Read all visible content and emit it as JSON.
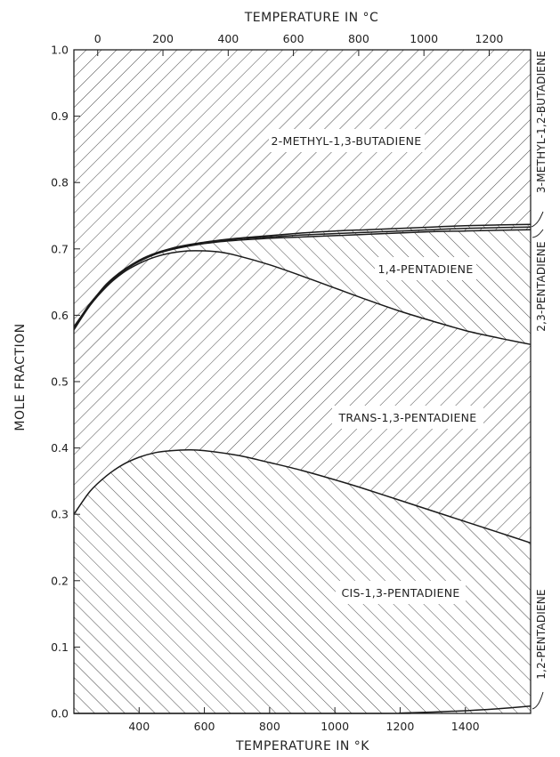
{
  "chart_data": {
    "type": "area",
    "x_axis": {
      "title": "TEMPERATURE IN °K",
      "range": [
        200,
        1600
      ],
      "ticks": [
        400,
        600,
        800,
        1000,
        1200,
        1400
      ],
      "tick_labels": [
        "400",
        "600",
        "800",
        "1000",
        "1200",
        "1400"
      ]
    },
    "top_axis": {
      "title": "TEMPERATURE IN °C",
      "ticks": [
        0,
        200,
        400,
        600,
        800,
        1000,
        1200
      ],
      "tick_labels": [
        "0",
        "200",
        "400",
        "600",
        "800",
        "1000",
        "1200"
      ]
    },
    "y_axis": {
      "title": "MOLE FRACTION",
      "range": [
        0.0,
        1.0
      ],
      "ticks": [
        0.0,
        0.1,
        0.2,
        0.3,
        0.4,
        0.5,
        0.6,
        0.7,
        0.8,
        0.9,
        1.0
      ],
      "tick_labels": [
        "0.0",
        "0.1",
        "0.2",
        "0.3",
        "0.4",
        "0.5",
        "0.6",
        "0.7",
        "0.8",
        "0.9",
        "1.0"
      ]
    },
    "grid": false,
    "boundaries": [
      {
        "id": "b12",
        "x": [
          200,
          1150,
          1200,
          1300,
          1400,
          1500,
          1600
        ],
        "y": [
          0.0,
          0.0,
          0.0005,
          0.002,
          0.004,
          0.007,
          0.011
        ]
      },
      {
        "id": "bcis",
        "x": [
          200,
          250,
          300,
          350,
          400,
          450,
          500,
          550,
          600,
          700,
          800,
          900,
          1000,
          1100,
          1200,
          1300,
          1400,
          1500,
          1600
        ],
        "y": [
          0.3,
          0.335,
          0.358,
          0.375,
          0.386,
          0.393,
          0.396,
          0.397,
          0.396,
          0.389,
          0.378,
          0.366,
          0.352,
          0.337,
          0.321,
          0.305,
          0.289,
          0.273,
          0.257
        ]
      },
      {
        "id": "btrans",
        "x": [
          200,
          250,
          300,
          350,
          400,
          450,
          500,
          550,
          600,
          650,
          700,
          800,
          900,
          1000,
          1100,
          1200,
          1300,
          1400,
          1500,
          1600
        ],
        "y": [
          0.578,
          0.615,
          0.643,
          0.664,
          0.678,
          0.688,
          0.694,
          0.697,
          0.697,
          0.695,
          0.69,
          0.676,
          0.659,
          0.641,
          0.623,
          0.606,
          0.591,
          0.577,
          0.566,
          0.556
        ]
      },
      {
        "id": "b14",
        "x": [
          200,
          250,
          300,
          350,
          400,
          450,
          500,
          550,
          600,
          650,
          700,
          800,
          900,
          1000,
          1100,
          1200,
          1300,
          1400,
          1500,
          1600
        ],
        "y": [
          0.581,
          0.618,
          0.645,
          0.666,
          0.681,
          0.692,
          0.699,
          0.704,
          0.708,
          0.711,
          0.713,
          0.716,
          0.718,
          0.72,
          0.722,
          0.724,
          0.726,
          0.727,
          0.728,
          0.729
        ]
      },
      {
        "id": "b23",
        "x": [
          200,
          300,
          400,
          500,
          600,
          700,
          800,
          900,
          1000,
          1100,
          1200,
          1300,
          1400,
          1500,
          1600
        ],
        "y": [
          0.582,
          0.646,
          0.682,
          0.7,
          0.709,
          0.715,
          0.718,
          0.721,
          0.723,
          0.725,
          0.727,
          0.729,
          0.731,
          0.732,
          0.733
        ]
      },
      {
        "id": "b3m",
        "x": [
          200,
          300,
          400,
          500,
          600,
          700,
          800,
          900,
          1000,
          1100,
          1200,
          1300,
          1400,
          1500,
          1600
        ],
        "y": [
          0.583,
          0.647,
          0.683,
          0.701,
          0.71,
          0.716,
          0.72,
          0.724,
          0.727,
          0.729,
          0.731,
          0.733,
          0.735,
          0.736,
          0.737
        ]
      }
    ],
    "regions": [
      {
        "name": "1,2-PENTADIENE",
        "lower": null,
        "upper": "b12"
      },
      {
        "name": "CIS-1,3-PENTADIENE",
        "lower": "b12",
        "upper": "bcis"
      },
      {
        "name": "TRANS-1,3-PENTADIENE",
        "lower": "bcis",
        "upper": "btrans"
      },
      {
        "name": "1,4-PENTADIENE",
        "lower": "btrans",
        "upper": "b14"
      },
      {
        "name": "2,3-PENTADIENE",
        "lower": "b14",
        "upper": "b23"
      },
      {
        "name": "3-METHYL-1,2-BUTADIENE",
        "lower": "b23",
        "upper": "b3m"
      },
      {
        "name": "2-METHYL-1,3-BUTADIENE",
        "lower": "b3m",
        "upper": null
      }
    ],
    "labels": {
      "methyl13": "2-METHYL-1,3-BUTADIENE",
      "p14": "1,4-PENTADIENE",
      "trans": "TRANS-1,3-PENTADIENE",
      "cis": "CIS-1,3-PENTADIENE",
      "methyl12": "3-METHYL-1,2-BUTADIENE",
      "p23": "2,3-PENTADIENE",
      "p12": "1,2-PENTADIENE"
    },
    "colors": {
      "ink": "#222222",
      "background": "#ffffff"
    }
  }
}
